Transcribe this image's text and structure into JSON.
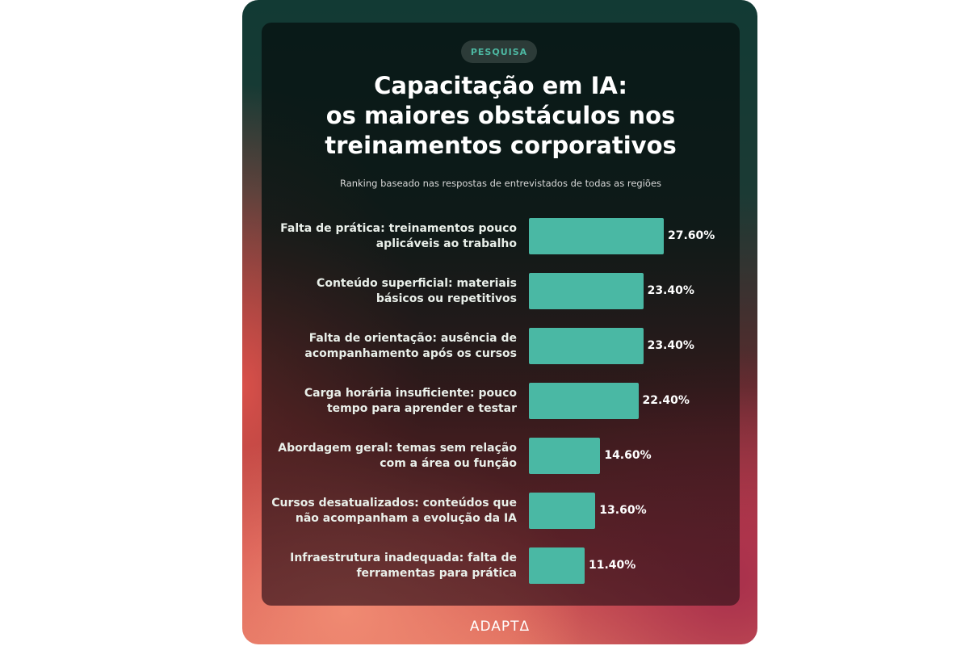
{
  "badge": "PESQUISA",
  "title_lines": [
    "Capacitação em IA:",
    "os maiores obstáculos nos",
    "treinamentos corporativos"
  ],
  "subtitle": "Ranking baseado nas respostas de entrevistados de todas as regiões",
  "logo": "ADAPTΔ",
  "colors": {
    "bar": "#4ab8a4",
    "badge_text": "#4db8a2"
  },
  "chart_data": {
    "type": "bar",
    "orientation": "horizontal",
    "title": "Capacitação em IA: os maiores obstáculos nos treinamentos corporativos",
    "categories": [
      [
        "Falta de prática: treinamentos pouco",
        "aplicáveis ao trabalho"
      ],
      [
        "Conteúdo superficial: materiais",
        "básicos ou repetitivos"
      ],
      [
        "Falta de orientação: ausência de",
        "acompanhamento após os cursos"
      ],
      [
        "Carga horária insuficiente: pouco",
        "tempo para aprender e testar"
      ],
      [
        "Abordagem geral: temas sem relação",
        "com a área ou função"
      ],
      [
        "Cursos desatualizados: conteúdos que",
        "não acompanham a evolução da IA"
      ],
      [
        "Infraestrutura inadequada: falta de",
        "ferramentas para prática"
      ]
    ],
    "values": [
      27.6,
      23.4,
      23.4,
      22.4,
      14.6,
      13.6,
      11.4
    ],
    "value_labels": [
      "27.60%",
      "23.40%",
      "23.40%",
      "22.40%",
      "14.60%",
      "13.60%",
      "11.40%"
    ],
    "unit": "%",
    "xlim": [
      0,
      30
    ]
  }
}
